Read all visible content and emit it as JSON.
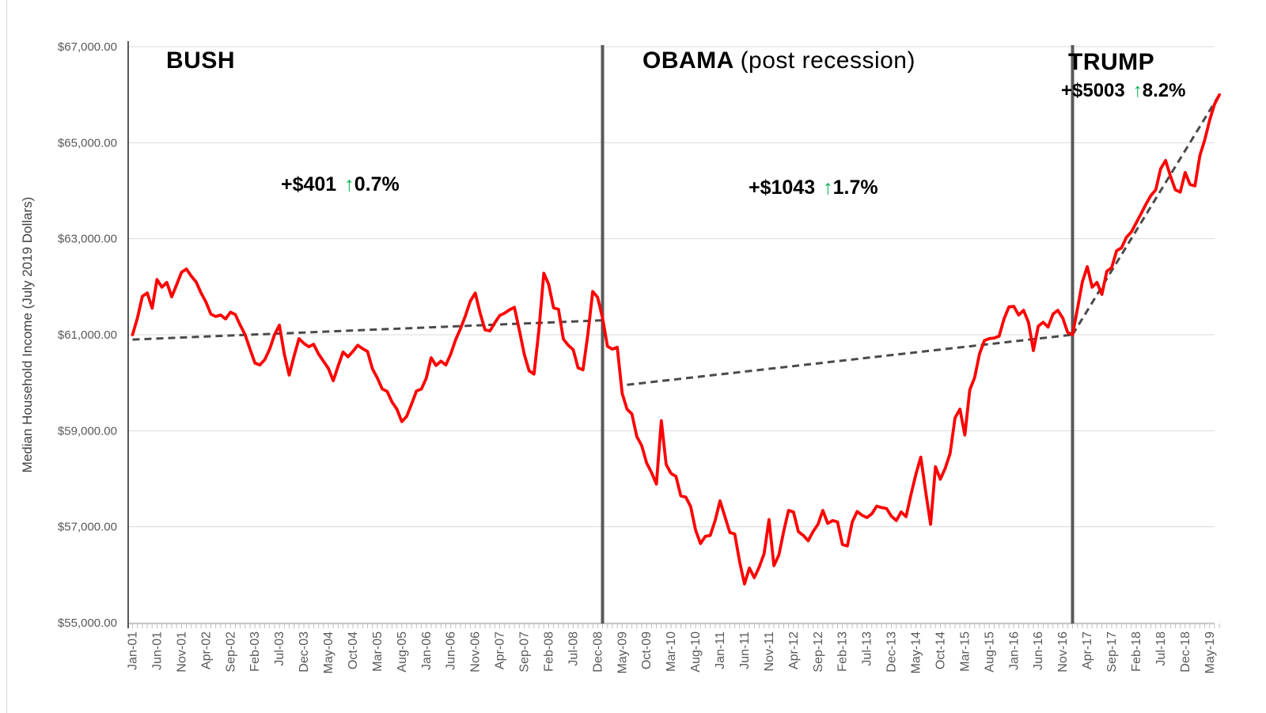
{
  "chart_data": {
    "type": "line",
    "y_axis_title": "Median Household Income (July 2019 Dollars)",
    "y_tick_labels": [
      "$67,000.00",
      "$65,000.00",
      "$63,000.00",
      "$61,000.00",
      "$59,000.00",
      "$57,000.00",
      "$55,000.00"
    ],
    "y_min": 55000,
    "y_max": 67000,
    "y_step": 2000,
    "grid": true,
    "x_tick_labels": [
      "Jan-01",
      "Jun-01",
      "Nov-01",
      "Apr-02",
      "Sep-02",
      "Feb-03",
      "Jul-03",
      "Dec-03",
      "May-04",
      "Oct-04",
      "Mar-05",
      "Aug-05",
      "Jan-06",
      "Jun-06",
      "Nov-06",
      "Apr-07",
      "Sep-07",
      "Feb-08",
      "Jul-08",
      "Dec-08",
      "May-09",
      "Oct-09",
      "Mar-10",
      "Aug-10",
      "Jan-11",
      "Jun-11",
      "Nov-11",
      "Apr-12",
      "Sep-12",
      "Feb-13",
      "Jul-13",
      "Dec-13",
      "May-14",
      "Oct-14",
      "Mar-15",
      "Aug-15",
      "Jan-16",
      "Jun-16",
      "Nov-16",
      "Apr-17",
      "Sep-17",
      "Feb-18",
      "Jul-18",
      "Dec-18",
      "May-19"
    ],
    "x_tick_interval_months": 5,
    "series": [
      {
        "name": "median-household-income",
        "color": "#FF0000",
        "start_month_label": "Jan-01",
        "monthly_values": [
          61000,
          61350,
          61800,
          61870,
          61550,
          62150,
          61990,
          62090,
          61790,
          62040,
          62300,
          62370,
          62220,
          62100,
          61870,
          61680,
          61430,
          61380,
          61410,
          61330,
          61470,
          61420,
          61200,
          61000,
          60700,
          60410,
          60370,
          60480,
          60700,
          61000,
          61200,
          60600,
          60160,
          60560,
          60920,
          60820,
          60750,
          60800,
          60600,
          60450,
          60300,
          60040,
          60350,
          60640,
          60540,
          60650,
          60780,
          60710,
          60650,
          60290,
          60100,
          59870,
          59820,
          59600,
          59450,
          59190,
          59300,
          59560,
          59830,
          59870,
          60100,
          60520,
          60360,
          60450,
          60370,
          60600,
          60900,
          61130,
          61400,
          61700,
          61870,
          61450,
          61100,
          61080,
          61250,
          61400,
          61450,
          61520,
          61570,
          61100,
          60600,
          60250,
          60180,
          61100,
          62280,
          62050,
          61560,
          61530,
          60910,
          60780,
          60690,
          60310,
          60270,
          61000,
          61900,
          61780,
          61350,
          60760,
          60700,
          60740,
          59780,
          59450,
          59350,
          58880,
          58690,
          58330,
          58130,
          57890,
          59210,
          58300,
          58110,
          58050,
          57640,
          57620,
          57420,
          56930,
          56650,
          56800,
          56820,
          57130,
          57540,
          57210,
          56880,
          56850,
          56270,
          55810,
          56140,
          55940,
          56160,
          56440,
          57150,
          56190,
          56410,
          56900,
          57340,
          57310,
          56900,
          56820,
          56710,
          56900,
          57050,
          57340,
          57070,
          57130,
          57100,
          56630,
          56600,
          57100,
          57320,
          57240,
          57190,
          57270,
          57430,
          57400,
          57380,
          57220,
          57130,
          57310,
          57210,
          57670,
          58090,
          58450,
          57730,
          57050,
          58250,
          57990,
          58220,
          58530,
          59270,
          59450,
          58910,
          59850,
          60110,
          60600,
          60880,
          60920,
          60930,
          60970,
          61330,
          61580,
          61590,
          61410,
          61510,
          61260,
          60670,
          61180,
          61260,
          61160,
          61430,
          61510,
          61350,
          61050,
          61000,
          61540,
          62100,
          62420,
          61990,
          62090,
          61840,
          62320,
          62400,
          62750,
          62810,
          63030,
          63140,
          63330,
          63520,
          63720,
          63900,
          64020,
          64460,
          64630,
          64300,
          64020,
          63970,
          64380,
          64130,
          64100,
          64730,
          65060,
          65470,
          65800,
          66000
        ]
      }
    ],
    "dividers": [
      {
        "month_index": 96
      },
      {
        "month_index": 192
      }
    ],
    "trendlines": [
      {
        "era": "BUSH",
        "from_month": 0,
        "from_value": 60900,
        "to_month": 96,
        "to_value": 61301
      },
      {
        "era": "OBAMA",
        "from_month": 101,
        "from_value": 59957,
        "to_month": 192,
        "to_value": 61000
      },
      {
        "era": "TRUMP",
        "from_month": 192,
        "from_value": 61000,
        "to_month": 222,
        "to_value": 66003
      }
    ],
    "eras": [
      {
        "name": "BUSH",
        "subtitle": "",
        "delta": "+$401",
        "arrow": "↑",
        "pct": "0.7%"
      },
      {
        "name": "OBAMA",
        "subtitle": "(post recession)",
        "delta": "+$1043",
        "arrow": "↑",
        "pct": "1.7%"
      },
      {
        "name": "TRUMP",
        "subtitle": "",
        "delta": "+$5003",
        "arrow": "↑",
        "pct": "8.2%"
      }
    ],
    "colors": {
      "line": "#FF0000",
      "trendline": "#4a4a4a",
      "divider": "#595959",
      "gridline": "#D9D9D9",
      "axis": "#BFBFBF",
      "axis_dark": "#595959",
      "tick_label": "#595959",
      "arrow_green": "#00B050",
      "heading": "#000000"
    }
  }
}
